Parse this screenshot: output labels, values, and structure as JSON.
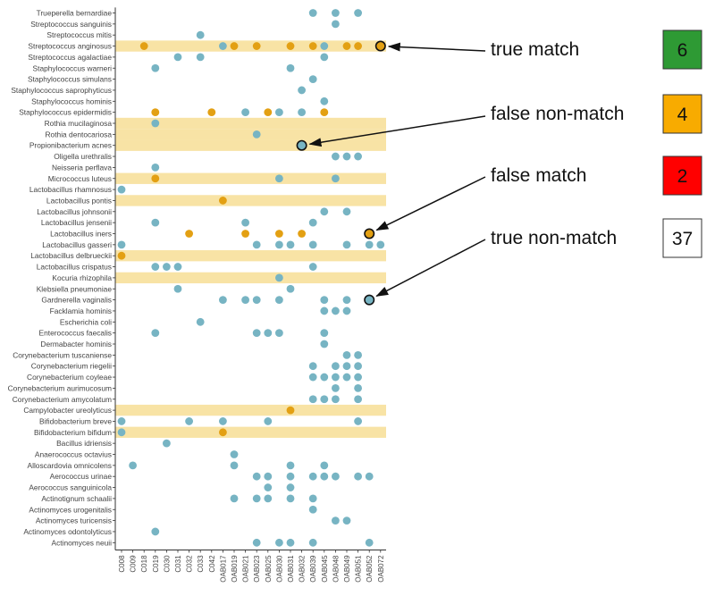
{
  "colors": {
    "teal": "#77b4c3",
    "orange": "#e3a013",
    "highlight_band": "#f8e3a5",
    "axis": "#333333",
    "true_match_box": "#2e9a34",
    "false_non_match_box": "#f8ab00",
    "false_match_box": "#ff0000",
    "true_non_match_box": "#ffffff"
  },
  "chart_data": {
    "type": "scatter",
    "x_categories": [
      "C008",
      "C009",
      "C018",
      "C019",
      "C030",
      "C031",
      "C032",
      "C033",
      "C042",
      "OAB017",
      "OAB019",
      "OAB021",
      "OAB023",
      "OAB025",
      "OAB030",
      "OAB031",
      "OAB032",
      "OAB039",
      "OAB045",
      "OAB048",
      "OAB049",
      "OAB051",
      "OAB052",
      "OAB072"
    ],
    "y_categories": [
      "Trueperella bernardiae",
      "Streptococcus sanguinis",
      "Streptococcus mitis",
      "Streptococcus anginosus",
      "Streptococcus agalactiae",
      "Staphylococcus warneri",
      "Staphylococcus simulans",
      "Staphylococcus saprophyticus",
      "Staphylococcus hominis",
      "Staphylococcus epidermidis",
      "Rothia mucilaginosa",
      "Rothia dentocariosa",
      "Propionibacterium acnes",
      "Oligella urethralis",
      "Neisseria perflava",
      "Micrococcus luteus",
      "Lactobacillus rhamnosus",
      "Lactobacillus pontis",
      "Lactobacillus johnsonii",
      "Lactobacillus jensenii",
      "Lactobacillus iners",
      "Lactobacillus gasseri",
      "Lactobacillus delbrueckii",
      "Lactobacillus crispatus",
      "Kocuria rhizophila",
      "Klebsiella pneumoniae",
      "Gardnerella vaginalis",
      "Facklamia hominis",
      "Escherichia coli",
      "Enterococcus faecalis",
      "Dermabacter hominis",
      "Corynebacterium tuscaniense",
      "Corynebacterium riegelii",
      "Corynebacterium coyleae",
      "Corynebacterium aurimucosum",
      "Corynebacterium amycolatum",
      "Campylobacter ureolyticus",
      "Bifidobacterium breve",
      "Bifidobacterium bifidum",
      "Bacillus idriensis",
      "Anaerococcus octavius",
      "Alloscardovia omnicolens",
      "Aerococcus urinae",
      "Aerococcus sanguinicola",
      "Actinotignum schaalii",
      "Actinomyces urogenitalis",
      "Actinomyces turicensis",
      "Actinomyces odontolyticus",
      "Actinomyces neuii"
    ],
    "highlighted_rows": [
      "Streptococcus anginosus",
      "Rothia mucilaginosa",
      "Rothia dentocariosa",
      "Propionibacterium acnes",
      "Micrococcus luteus",
      "Lactobacillus pontis",
      "Lactobacillus delbrueckii",
      "Kocuria rhizophila",
      "Campylobacter ureolyticus",
      "Bifidobacterium bifidum"
    ],
    "series": [
      {
        "color": "teal",
        "points": [
          [
            "OAB039",
            "Trueperella bernardiae"
          ],
          [
            "OAB048",
            "Trueperella bernardiae"
          ],
          [
            "OAB051",
            "Trueperella bernardiae"
          ],
          [
            "OAB048",
            "Streptococcus sanguinis"
          ],
          [
            "C033",
            "Streptococcus mitis"
          ],
          [
            "OAB017",
            "Streptococcus anginosus"
          ],
          [
            "OAB045",
            "Streptococcus anginosus"
          ],
          [
            "C031",
            "Streptococcus agalactiae"
          ],
          [
            "C033",
            "Streptococcus agalactiae"
          ],
          [
            "OAB045",
            "Streptococcus agalactiae"
          ],
          [
            "C019",
            "Staphylococcus warneri"
          ],
          [
            "OAB031",
            "Staphylococcus warneri"
          ],
          [
            "OAB039",
            "Staphylococcus simulans"
          ],
          [
            "OAB032",
            "Staphylococcus saprophyticus"
          ],
          [
            "OAB045",
            "Staphylococcus hominis"
          ],
          [
            "OAB021",
            "Staphylococcus epidermidis"
          ],
          [
            "OAB030",
            "Staphylococcus epidermidis"
          ],
          [
            "OAB032",
            "Staphylococcus epidermidis"
          ],
          [
            "C019",
            "Rothia mucilaginosa"
          ],
          [
            "OAB023",
            "Rothia dentocariosa"
          ],
          [
            "OAB048",
            "Oligella urethralis"
          ],
          [
            "OAB049",
            "Oligella urethralis"
          ],
          [
            "OAB051",
            "Oligella urethralis"
          ],
          [
            "C019",
            "Neisseria perflava"
          ],
          [
            "OAB030",
            "Micrococcus luteus"
          ],
          [
            "OAB048",
            "Micrococcus luteus"
          ],
          [
            "C008",
            "Lactobacillus rhamnosus"
          ],
          [
            "OAB045",
            "Lactobacillus johnsonii"
          ],
          [
            "OAB049",
            "Lactobacillus johnsonii"
          ],
          [
            "C019",
            "Lactobacillus jensenii"
          ],
          [
            "OAB021",
            "Lactobacillus jensenii"
          ],
          [
            "OAB039",
            "Lactobacillus jensenii"
          ],
          [
            "C008",
            "Lactobacillus gasseri"
          ],
          [
            "OAB023",
            "Lactobacillus gasseri"
          ],
          [
            "OAB030",
            "Lactobacillus gasseri"
          ],
          [
            "OAB031",
            "Lactobacillus gasseri"
          ],
          [
            "OAB039",
            "Lactobacillus gasseri"
          ],
          [
            "OAB049",
            "Lactobacillus gasseri"
          ],
          [
            "OAB052",
            "Lactobacillus gasseri"
          ],
          [
            "OAB072",
            "Lactobacillus gasseri"
          ],
          [
            "C019",
            "Lactobacillus crispatus"
          ],
          [
            "C030",
            "Lactobacillus crispatus"
          ],
          [
            "C031",
            "Lactobacillus crispatus"
          ],
          [
            "OAB039",
            "Lactobacillus crispatus"
          ],
          [
            "OAB030",
            "Kocuria rhizophila"
          ],
          [
            "C031",
            "Klebsiella pneumoniae"
          ],
          [
            "OAB031",
            "Klebsiella pneumoniae"
          ],
          [
            "OAB017",
            "Gardnerella vaginalis"
          ],
          [
            "OAB021",
            "Gardnerella vaginalis"
          ],
          [
            "OAB023",
            "Gardnerella vaginalis"
          ],
          [
            "OAB030",
            "Gardnerella vaginalis"
          ],
          [
            "OAB045",
            "Gardnerella vaginalis"
          ],
          [
            "OAB049",
            "Gardnerella vaginalis"
          ],
          [
            "OAB045",
            "Facklamia hominis"
          ],
          [
            "OAB048",
            "Facklamia hominis"
          ],
          [
            "OAB049",
            "Facklamia hominis"
          ],
          [
            "C033",
            "Escherichia coli"
          ],
          [
            "C019",
            "Enterococcus faecalis"
          ],
          [
            "OAB023",
            "Enterococcus faecalis"
          ],
          [
            "OAB025",
            "Enterococcus faecalis"
          ],
          [
            "OAB030",
            "Enterococcus faecalis"
          ],
          [
            "OAB045",
            "Enterococcus faecalis"
          ],
          [
            "OAB045",
            "Dermabacter hominis"
          ],
          [
            "OAB049",
            "Corynebacterium tuscaniense"
          ],
          [
            "OAB051",
            "Corynebacterium tuscaniense"
          ],
          [
            "OAB039",
            "Corynebacterium riegelii"
          ],
          [
            "OAB048",
            "Corynebacterium riegelii"
          ],
          [
            "OAB049",
            "Corynebacterium riegelii"
          ],
          [
            "OAB051",
            "Corynebacterium riegelii"
          ],
          [
            "OAB039",
            "Corynebacterium coyleae"
          ],
          [
            "OAB045",
            "Corynebacterium coyleae"
          ],
          [
            "OAB048",
            "Corynebacterium coyleae"
          ],
          [
            "OAB049",
            "Corynebacterium coyleae"
          ],
          [
            "OAB051",
            "Corynebacterium coyleae"
          ],
          [
            "OAB048",
            "Corynebacterium aurimucosum"
          ],
          [
            "OAB051",
            "Corynebacterium aurimucosum"
          ],
          [
            "OAB039",
            "Corynebacterium amycolatum"
          ],
          [
            "OAB045",
            "Corynebacterium amycolatum"
          ],
          [
            "OAB048",
            "Corynebacterium amycolatum"
          ],
          [
            "OAB051",
            "Corynebacterium amycolatum"
          ],
          [
            "C008",
            "Bifidobacterium breve"
          ],
          [
            "C032",
            "Bifidobacterium breve"
          ],
          [
            "OAB017",
            "Bifidobacterium breve"
          ],
          [
            "OAB025",
            "Bifidobacterium breve"
          ],
          [
            "OAB051",
            "Bifidobacterium breve"
          ],
          [
            "C008",
            "Bifidobacterium bifidum"
          ],
          [
            "C030",
            "Bacillus idriensis"
          ],
          [
            "OAB019",
            "Anaerococcus octavius"
          ],
          [
            "C009",
            "Alloscardovia omnicolens"
          ],
          [
            "OAB019",
            "Alloscardovia omnicolens"
          ],
          [
            "OAB031",
            "Alloscardovia omnicolens"
          ],
          [
            "OAB045",
            "Alloscardovia omnicolens"
          ],
          [
            "OAB023",
            "Aerococcus urinae"
          ],
          [
            "OAB025",
            "Aerococcus urinae"
          ],
          [
            "OAB031",
            "Aerococcus urinae"
          ],
          [
            "OAB039",
            "Aerococcus urinae"
          ],
          [
            "OAB045",
            "Aerococcus urinae"
          ],
          [
            "OAB048",
            "Aerococcus urinae"
          ],
          [
            "OAB051",
            "Aerococcus urinae"
          ],
          [
            "OAB052",
            "Aerococcus urinae"
          ],
          [
            "OAB025",
            "Aerococcus sanguinicola"
          ],
          [
            "OAB031",
            "Aerococcus sanguinicola"
          ],
          [
            "OAB019",
            "Actinotignum schaalii"
          ],
          [
            "OAB023",
            "Actinotignum schaalii"
          ],
          [
            "OAB025",
            "Actinotignum schaalii"
          ],
          [
            "OAB031",
            "Actinotignum schaalii"
          ],
          [
            "OAB039",
            "Actinotignum schaalii"
          ],
          [
            "OAB039",
            "Actinomyces urogenitalis"
          ],
          [
            "OAB048",
            "Actinomyces turicensis"
          ],
          [
            "OAB049",
            "Actinomyces turicensis"
          ],
          [
            "C019",
            "Actinomyces odontolyticus"
          ],
          [
            "OAB023",
            "Actinomyces neuii"
          ],
          [
            "OAB030",
            "Actinomyces neuii"
          ],
          [
            "OAB031",
            "Actinomyces neuii"
          ],
          [
            "OAB039",
            "Actinomyces neuii"
          ],
          [
            "OAB052",
            "Actinomyces neuii"
          ]
        ]
      },
      {
        "color": "orange",
        "points": [
          [
            "C018",
            "Streptococcus anginosus"
          ],
          [
            "OAB019",
            "Streptococcus anginosus"
          ],
          [
            "OAB023",
            "Streptococcus anginosus"
          ],
          [
            "OAB031",
            "Streptococcus anginosus"
          ],
          [
            "OAB039",
            "Streptococcus anginosus"
          ],
          [
            "OAB049",
            "Streptococcus anginosus"
          ],
          [
            "OAB051",
            "Streptococcus anginosus"
          ],
          [
            "C019",
            "Staphylococcus epidermidis"
          ],
          [
            "C042",
            "Staphylococcus epidermidis"
          ],
          [
            "OAB025",
            "Staphylococcus epidermidis"
          ],
          [
            "OAB045",
            "Staphylococcus epidermidis"
          ],
          [
            "C019",
            "Micrococcus luteus"
          ],
          [
            "OAB017",
            "Lactobacillus pontis"
          ],
          [
            "C032",
            "Lactobacillus iners"
          ],
          [
            "OAB021",
            "Lactobacillus iners"
          ],
          [
            "OAB030",
            "Lactobacillus iners"
          ],
          [
            "OAB032",
            "Lactobacillus iners"
          ],
          [
            "C008",
            "Lactobacillus delbrueckii"
          ],
          [
            "OAB031",
            "Campylobacter ureolyticus"
          ],
          [
            "OAB017",
            "Bifidobacterium bifidum"
          ]
        ]
      }
    ],
    "annotated_points": [
      {
        "x": "OAB072",
        "y": "Streptococcus anginosus",
        "color": "orange",
        "label": "true match"
      },
      {
        "x": "OAB032",
        "y": "Propionibacterium acnes",
        "color": "teal",
        "label": "false non-match"
      },
      {
        "x": "OAB052",
        "y": "Lactobacillus iners",
        "color": "orange",
        "label": "false match"
      },
      {
        "x": "OAB052",
        "y": "Gardnerella vaginalis",
        "color": "teal",
        "label": "true non-match"
      }
    ]
  },
  "legend": [
    {
      "label": "true match",
      "count": "6",
      "box_color": "true_match_box",
      "text_color": "#111111"
    },
    {
      "label": "false non-match",
      "count": "4",
      "box_color": "false_non_match_box",
      "text_color": "#111111"
    },
    {
      "label": "false match",
      "count": "2",
      "box_color": "false_match_box",
      "text_color": "#111111"
    },
    {
      "label": "true non-match",
      "count": "37",
      "box_color": "true_non_match_box",
      "text_color": "#111111"
    }
  ]
}
